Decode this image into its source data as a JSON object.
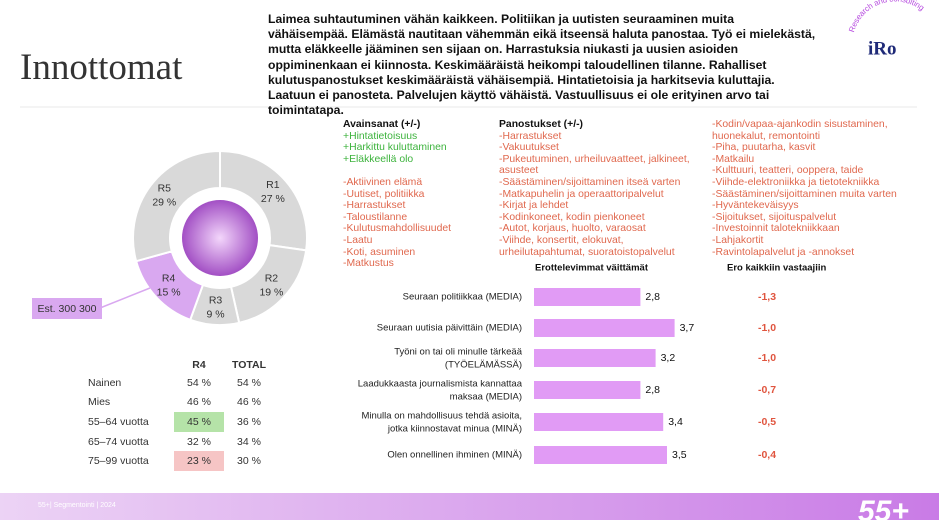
{
  "title": "Innottomat",
  "description": "Laimea suhtautuminen vähän kaikkeen. Politiikan ja uutisten seuraaminen muita vähäisempää. Elämästä nautitaan vähemmän eikä itseensä haluta panostaa. Työ ei mielekästä, mutta eläkkeelle jääminen sen sijaan on. Harrastuksia niukasti ja uusien asioiden oppiminenkaan ei kiinnosta. Keskimääräistä heikompi taloudellinen tilanne. Rahalliset kulutuspanostukset keskimääräistä vähäisempiä. Hintatietoisia ja harkitsevia kuluttajia. Laatuun ei panosteta. Palvelujen käyttö vähäistä. Vastuullisuus ei ole erityinen arvo tai toimintatapa.",
  "logo": {
    "text": "iRo",
    "arc": "Research and consulting"
  },
  "donut": {
    "segments": [
      {
        "label": "R1",
        "value": 27,
        "value_label": "27 %",
        "color": "#d9d9d9"
      },
      {
        "label": "R2",
        "value": 19,
        "value_label": "19 %",
        "color": "#d9d9d9"
      },
      {
        "label": "R3",
        "value": 9,
        "value_label": "9 %",
        "color": "#d9d9d9"
      },
      {
        "label": "R4",
        "value": 15,
        "value_label": "15 %",
        "color": "#d9a8f0"
      },
      {
        "label": "R5",
        "value": 29,
        "value_label": "29 %",
        "color": "#d9d9d9"
      }
    ],
    "callout": "Est. 300 300"
  },
  "keywords": {
    "heading": "Avainsanat (+/-)",
    "positive": [
      "+Hintatietoisuus",
      "+Harkittu kuluttaminen",
      "+Eläkkeellä olo"
    ],
    "negative": [
      "-Aktiivinen elämä",
      "-Uutiset, politiikka",
      "-Harrastukset",
      "-Taloustilanne",
      "-Kulutusmahdollisuudet",
      "-Laatu",
      "-Koti, asuminen",
      "-Matkustus"
    ]
  },
  "investments": {
    "heading": "Panostukset (+/-)",
    "items": [
      "-Harrastukset",
      "-Vakuutukset",
      "-Pukeutuminen, urheiluvaatteet, jalkineet, asusteet",
      "-Säästäminen/sijoittaminen itseä varten",
      "-Matkapuhelin ja operaattoripalvelut",
      "-Kirjat ja lehdet",
      "-Kodinkoneet, kodin pienkoneet",
      "-Autot, korjaus, huolto, varaosat",
      "-Viihde, konsertit, elokuvat, urheilutapahtumat, suoratoistopalvelut"
    ],
    "more": [
      "-Kodin/vapaa-ajankodin sisustaminen, huonekalut, remontointi",
      "-Piha, puutarha, kasvit",
      "-Matkailu",
      "-Kulttuuri, teatteri, ooppera, taide",
      "-Viihde-elektroniikka ja tietotekniikka",
      "-Säästäminen/sijoittaminen muita varten",
      "-Hyväntekeväisyys",
      "-Sijoitukset, sijoituspalvelut",
      "-Investoinnit talotekniikkaan",
      "-Lahjakortit",
      "-Ravintolapalvelut ja -annokset"
    ]
  },
  "table": {
    "columns": [
      "R4",
      "TOTAL"
    ],
    "rows": [
      {
        "label": "Nainen",
        "cells": [
          "54 %",
          "54 %"
        ],
        "highlight": null
      },
      {
        "label": "Mies",
        "cells": [
          "46 %",
          "46 %"
        ],
        "highlight": null
      },
      {
        "label": "55–64 vuotta",
        "cells": [
          "45 %",
          "36 %"
        ],
        "highlight": "#b5e3a8"
      },
      {
        "label": "65–74 vuotta",
        "cells": [
          "32 %",
          "34 %"
        ],
        "highlight": null
      },
      {
        "label": "75–99 vuotta",
        "cells": [
          "23 %",
          "30 %"
        ],
        "highlight": "#f6c5c5"
      }
    ]
  },
  "statements": {
    "heading": "Erottelevimmat väittämät",
    "diff_heading": "Ero kaikkiin vastaajiin",
    "color": "#e19bf5",
    "items": [
      {
        "text": "Seuraan politiikkaa (MEDIA)",
        "value": 2.8,
        "value_label": "2,8",
        "diff": -1.3,
        "diff_label": "-1,3"
      },
      {
        "text": "Seuraan uutisia päivittäin (MEDIA)",
        "value": 3.7,
        "value_label": "3,7",
        "diff": -1.0,
        "diff_label": "-1,0"
      },
      {
        "text": "Työni on tai oli minulle tärkeää (TYÖELÄMÄSSÄ)",
        "value": 3.2,
        "value_label": "3,2",
        "diff": -1.0,
        "diff_label": "-1,0"
      },
      {
        "text": "Laadukkaasta journalismista kannattaa maksaa (MEDIA)",
        "value": 2.8,
        "value_label": "2,8",
        "diff": -0.7,
        "diff_label": "-0,7"
      },
      {
        "text": "Minulla on mahdollisuus tehdä asioita, jotka kiinnostavat minua (MINÄ)",
        "value": 3.4,
        "value_label": "3,4",
        "diff": -0.5,
        "diff_label": "-0,5"
      },
      {
        "text": "Olen onnellinen ihminen (MINÄ)",
        "value": 3.5,
        "value_label": "3,5",
        "diff": -0.4,
        "diff_label": "-0,4"
      }
    ]
  },
  "footer": {
    "text": "55+| Segmentointi | 2024",
    "logo": "55+"
  }
}
